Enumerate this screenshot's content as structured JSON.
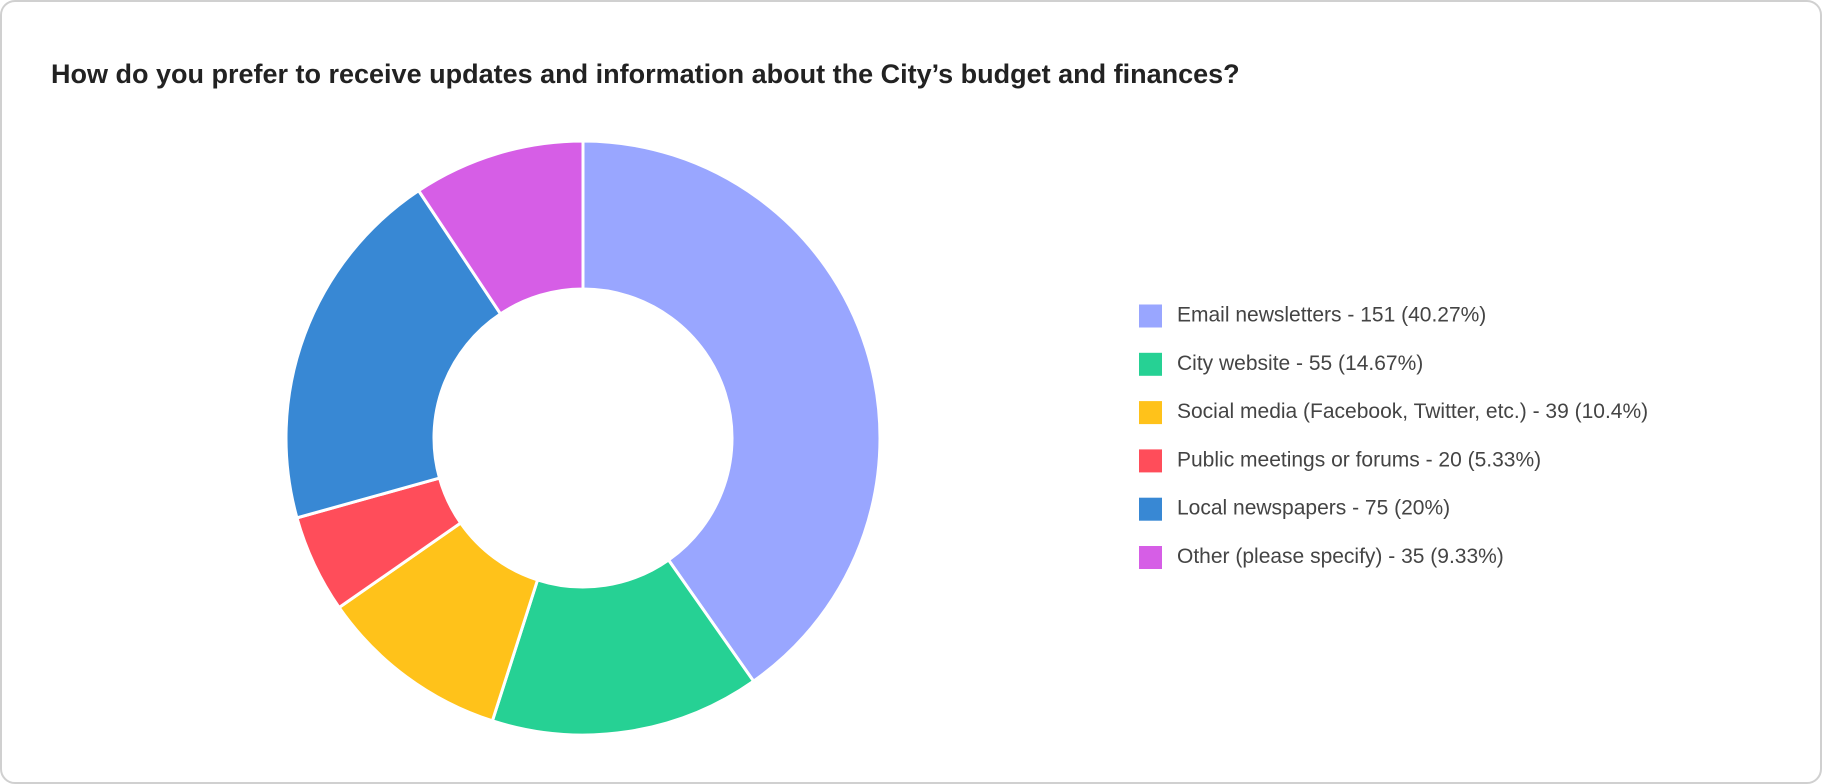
{
  "chart_data": {
    "type": "donut",
    "title": "How do you prefer to receive updates and information about the City’s budget and finances?",
    "categories": [
      "Email newsletters - 151 (40.27%)",
      "City website - 55 (14.67%)",
      "Social media (Facebook, Twitter, etc.) - 39 (10.4%)",
      "Public meetings or forums - 20 (5.33%)",
      "Local newspapers - 75 (20%)",
      "Other (please specify) - 35 (9.33%)"
    ],
    "values": [
      151,
      55,
      39,
      20,
      75,
      35
    ],
    "colors": [
      "#99a6ff",
      "#26d194",
      "#ffc21a",
      "#ff4d5a",
      "#3888d4",
      "#d65ee6"
    ],
    "legend": "right"
  }
}
